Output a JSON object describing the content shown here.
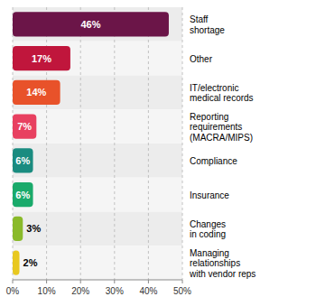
{
  "chart_data": {
    "type": "bar",
    "orientation": "horizontal",
    "categories": [
      "Staff\nshortage",
      "Other",
      "IT/electronic\nmedical records",
      "Reporting\nrequirements\n(MACRA/MIPS)",
      "Compliance",
      "Insurance",
      "Changes\nin coding",
      "Managing\nrelationships\nwith vendor reps"
    ],
    "values": [
      46,
      17,
      14,
      7,
      6,
      6,
      3,
      2
    ],
    "value_labels": [
      "46%",
      "17%",
      "14%",
      "7%",
      "6%",
      "6%",
      "3%",
      "2%"
    ],
    "data_labels": true,
    "colors": [
      "#6b1548",
      "#c0163c",
      "#e8522a",
      "#e84060",
      "#1a8c80",
      "#1aaa6b",
      "#8aba2a",
      "#e8c820"
    ],
    "xlim": [
      0,
      50
    ],
    "xticks": [
      {
        "value": 0,
        "label": "0%"
      },
      {
        "value": 10,
        "label": "10%"
      },
      {
        "value": 20,
        "label": "20%"
      },
      {
        "value": 30,
        "label": "30%"
      },
      {
        "value": 40,
        "label": "40%"
      },
      {
        "value": 50,
        "label": "50%"
      }
    ],
    "grid": true
  }
}
